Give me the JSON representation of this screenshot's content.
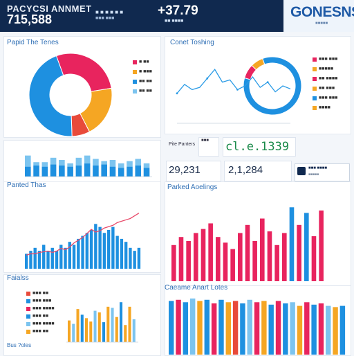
{
  "header": {
    "title": "PACYCSI ANNMET",
    "main_value": "715,588",
    "meta_line_1": "■ ■ ■ ■ ■ ■",
    "meta_line_2": "■■■ ■■■",
    "delta_value": "+37.79",
    "delta_caption": "■■ ■■■■",
    "brand": "GONESNS",
    "brand_sub": "■■■■■"
  },
  "panels": {
    "donut_left_title": "Papid The Tenes",
    "donut_right_title": "Conet Toshing",
    "combo_title": "Panted Thas",
    "bars_right_title": "Parked Aoelings",
    "legend_bottom_title": "Faialss",
    "bars_bottom_right_title": "Caeame Anart Lotes",
    "footer_left": "Bus ?oles",
    "kpi_label": "Pite Panters",
    "kpi_mid_label": "■■■"
  },
  "kpis": {
    "center_value": "cl.e.1339",
    "left_value": "29,231",
    "right_value": "2,1,284",
    "tile_text": "■■■ ■■■■",
    "tile_sub": "■■■■■"
  },
  "legends": {
    "donut_left": [
      "■ ■■",
      "■ ■■■",
      "■■ ■■",
      "■■ ■■"
    ],
    "donut_right": [
      "■■■ ■■■",
      "■■■■■",
      "■■ ■■■■",
      "■■ ■■■",
      "■■■ ■■■",
      "■■■■"
    ],
    "bottom_left": [
      "■■■ ■■",
      "■■■ ■■■",
      "■■■ ■■■■",
      "■■■ ■■",
      "■■■ ■■■■",
      "■■■ ■■"
    ]
  },
  "colors": {
    "blue": "#1e90e0",
    "lightblue": "#7cc4ef",
    "pink": "#e8245e",
    "orange": "#f5a623",
    "red": "#e84a3a",
    "navy": "#10294f"
  },
  "chart_data": [
    {
      "type": "pie",
      "variant": "donut",
      "labels": [
        "Pink",
        "Orange",
        "Red",
        "Blue"
      ],
      "values": [
        28,
        20,
        7,
        45
      ],
      "colors": [
        "#e8245e",
        "#f5a623",
        "#e84a3a",
        "#1e90e0"
      ]
    },
    {
      "type": "line",
      "x": [
        1,
        2,
        3,
        4,
        5,
        6,
        7,
        8,
        9,
        10,
        11,
        12,
        13,
        14,
        15,
        16
      ],
      "values": [
        40,
        52,
        45,
        48,
        60,
        72,
        55,
        58,
        45,
        50,
        62,
        48,
        55,
        42,
        50,
        46
      ],
      "ylim": [
        0,
        100
      ]
    },
    {
      "type": "pie",
      "variant": "donut",
      "labels": [
        "Blue",
        "Pink",
        "Orange"
      ],
      "values": [
        85,
        8,
        7
      ],
      "colors": [
        "#1e90e0",
        "#e8245e",
        "#f5a623"
      ]
    },
    {
      "type": "bar",
      "stacked": true,
      "categories": [
        "1",
        "2",
        "3",
        "4",
        "5",
        "6",
        "7",
        "8",
        "9",
        "10",
        "11",
        "12",
        "13",
        "14",
        "15"
      ],
      "series": [
        {
          "values": [
            18,
            20,
            18,
            22,
            20,
            18,
            20,
            24,
            20,
            22,
            18,
            16,
            18,
            20,
            16
          ]
        },
        {
          "values": [
            20,
            6,
            8,
            12,
            10,
            6,
            14,
            14,
            12,
            6,
            12,
            8,
            10,
            12,
            8
          ]
        }
      ],
      "colors": [
        "#1e90e0",
        "#7cc4ef"
      ],
      "ylim": [
        0,
        50
      ]
    },
    {
      "type": "bar",
      "combo_line": true,
      "categories": [
        "1",
        "2",
        "3",
        "4",
        "5",
        "6",
        "7",
        "8",
        "9",
        "10",
        "11",
        "12",
        "13",
        "14",
        "15",
        "16",
        "17",
        "18",
        "19",
        "20",
        "21",
        "22",
        "23",
        "24",
        "25",
        "26",
        "27"
      ],
      "values": [
        10,
        12,
        14,
        12,
        16,
        12,
        14,
        12,
        16,
        14,
        18,
        16,
        20,
        22,
        24,
        26,
        30,
        28,
        24,
        26,
        28,
        22,
        20,
        18,
        14,
        12,
        14
      ],
      "line_values": [
        20,
        22,
        22,
        24,
        25,
        26,
        24,
        26,
        30,
        28,
        32,
        38,
        42,
        46,
        52,
        58,
        54,
        56,
        60,
        62,
        64,
        68,
        70,
        72,
        74,
        78,
        82
      ],
      "ylim": [
        0,
        100
      ],
      "colors": [
        "#1e90e0",
        "#e84a6a"
      ]
    },
    {
      "type": "bar",
      "categories": [
        "1",
        "2",
        "3",
        "4",
        "5",
        "6",
        "7",
        "8",
        "9",
        "10",
        "11",
        "12",
        "13",
        "14",
        "15",
        "16",
        "17",
        "18",
        "19",
        "20",
        "21"
      ],
      "values": [
        45,
        55,
        50,
        60,
        65,
        72,
        55,
        48,
        40,
        60,
        70,
        50,
        78,
        62,
        45,
        60,
        92,
        70,
        85,
        56,
        88
      ],
      "colors": [
        "#e8245e",
        "#e8245e",
        "#e8245e",
        "#e8245e",
        "#e8245e",
        "#e8245e",
        "#e8245e",
        "#e8245e",
        "#e8245e",
        "#e8245e",
        "#e8245e",
        "#e8245e",
        "#e8245e",
        "#e8245e",
        "#e8245e",
        "#e8245e",
        "#1e90e0",
        "#e8245e",
        "#1e90e0",
        "#e8245e",
        "#e8245e"
      ],
      "ylim": [
        0,
        100
      ]
    },
    {
      "type": "bar",
      "categories": [
        "1",
        "2",
        "3",
        "4",
        "5",
        "6",
        "7",
        "8",
        "9",
        "10",
        "11",
        "12",
        "13",
        "14",
        "15",
        "16"
      ],
      "values": [
        38,
        32,
        58,
        48,
        42,
        36,
        55,
        52,
        35,
        62,
        60,
        44,
        70,
        30,
        62,
        40
      ],
      "colors": [
        "#f5a623",
        "#7cc4ef",
        "#f5a623",
        "#1e90e0",
        "#f5a623",
        "#f5a623",
        "#7cc4ef",
        "#f5a623",
        "#1e90e0",
        "#f5a623",
        "#7cc4ef",
        "#f5a623",
        "#1e90e0",
        "#f5a623",
        "#f5a623",
        "#7cc4ef"
      ],
      "ylim": [
        0,
        80
      ]
    },
    {
      "type": "bar",
      "categories": [
        "1",
        "2",
        "3",
        "4",
        "5",
        "6",
        "7",
        "8",
        "9",
        "10",
        "11",
        "12",
        "13",
        "14",
        "15",
        "16",
        "17",
        "18",
        "19",
        "20",
        "21",
        "22",
        "23",
        "24",
        "25"
      ],
      "values": [
        88,
        90,
        86,
        92,
        88,
        90,
        84,
        90,
        86,
        88,
        84,
        90,
        86,
        88,
        82,
        88,
        84,
        86,
        80,
        86,
        82,
        84,
        80,
        78,
        80
      ],
      "colors": [
        "#1e90e0",
        "#e8245e",
        "#1e90e0",
        "#7cc4ef",
        "#f5a623",
        "#1e90e0",
        "#e8245e",
        "#1e90e0",
        "#f5a623",
        "#e84a3a",
        "#1e90e0",
        "#7cc4ef",
        "#e8245e",
        "#f5a623",
        "#1e90e0",
        "#e8245e",
        "#1e90e0",
        "#7cc4ef",
        "#f5a623",
        "#e8245e",
        "#1e90e0",
        "#e8245e",
        "#7cc4ef",
        "#f5a623",
        "#1e90e0"
      ],
      "ylim": [
        0,
        100
      ]
    }
  ]
}
